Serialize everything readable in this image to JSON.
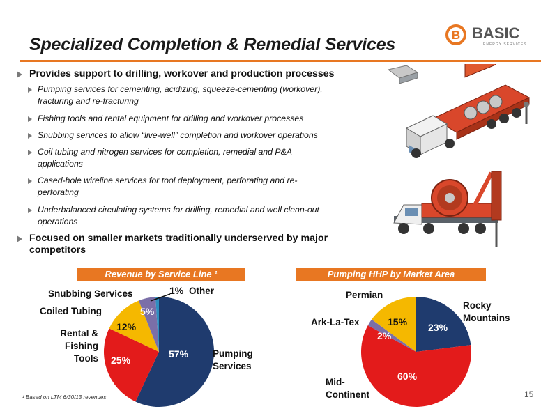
{
  "header": {
    "title": "Specialized Completion & Remedial Services",
    "logo_letter": "B",
    "logo_name": "BASIC",
    "logo_tagline": "ENERGY SERVICES",
    "accent": "#e87722"
  },
  "bullets": [
    {
      "text": "Provides support to drilling, workover and production processes"
    },
    {
      "text": "Focused on smaller markets traditionally underserved by major",
      "text2": "competitors"
    }
  ],
  "subbullets": [
    {
      "l1": "Pumping services for cementing, acidizing, squeeze-cementing (workover),",
      "l2": "fracturing and re-fracturing"
    },
    {
      "l1": "Fishing tools and rental equipment for drilling and workover processes"
    },
    {
      "l1": "Snubbing services to allow “live-well” completion and workover operations"
    },
    {
      "l1": "Coil tubing and nitrogen services for completion, remedial and P&A",
      "l2": "applications"
    },
    {
      "l1": "Cased-hole wireline services for tool deployment, perforating and re-",
      "l2": "perforating"
    },
    {
      "l1": "Underbalanced circulating systems for drilling, remedial and well clean-out",
      "l2": "operations"
    }
  ],
  "chart_data": [
    {
      "type": "pie",
      "title": "Revenue by Service Line ¹",
      "slices": [
        {
          "label": "Pumping Services",
          "value": 57,
          "color": "#1f3b6e"
        },
        {
          "label": "Rental & Fishing Tools",
          "value": 25,
          "color": "#e31b1b"
        },
        {
          "label": "Coiled Tubing",
          "value": 12,
          "color": "#f5b800"
        },
        {
          "label": "Snubbing Services",
          "value": 5,
          "color": "#7b6fa8"
        },
        {
          "label": "Other",
          "value": 1,
          "color": "#2e8fc0"
        }
      ],
      "pct_labels": [
        "57%",
        "25%",
        "12%",
        "5%",
        "1%"
      ]
    },
    {
      "type": "pie",
      "title": "Pumping HHP by Market Area",
      "slices": [
        {
          "label": "Rocky Mountains",
          "value": 23,
          "color": "#1f3b6e"
        },
        {
          "label": "Mid-Continent",
          "value": 60,
          "color": "#e31b1b"
        },
        {
          "label": "Ark-La-Tex",
          "value": 2,
          "color": "#7b6fa8"
        },
        {
          "label": "Permian",
          "value": 15,
          "color": "#f5b800"
        }
      ],
      "pct_labels": [
        "23%",
        "60%",
        "2%",
        "15%"
      ]
    }
  ],
  "labels1": {
    "snubbing": "Snubbing Services",
    "other": "Other",
    "coiled": "Coiled Tubing",
    "rental1": "Rental &",
    "rental2": "Fishing",
    "rental3": "Tools",
    "pumping1": "Pumping",
    "pumping2": "Services"
  },
  "labels2": {
    "permian": "Permian",
    "rocky1": "Rocky",
    "rocky2": "Mountains",
    "ark": "Ark-La-Tex",
    "mid1": "Mid-",
    "mid2": "Continent"
  },
  "footnote": "¹ Based on LTM 6/30/13 revenues",
  "page_number": "15"
}
